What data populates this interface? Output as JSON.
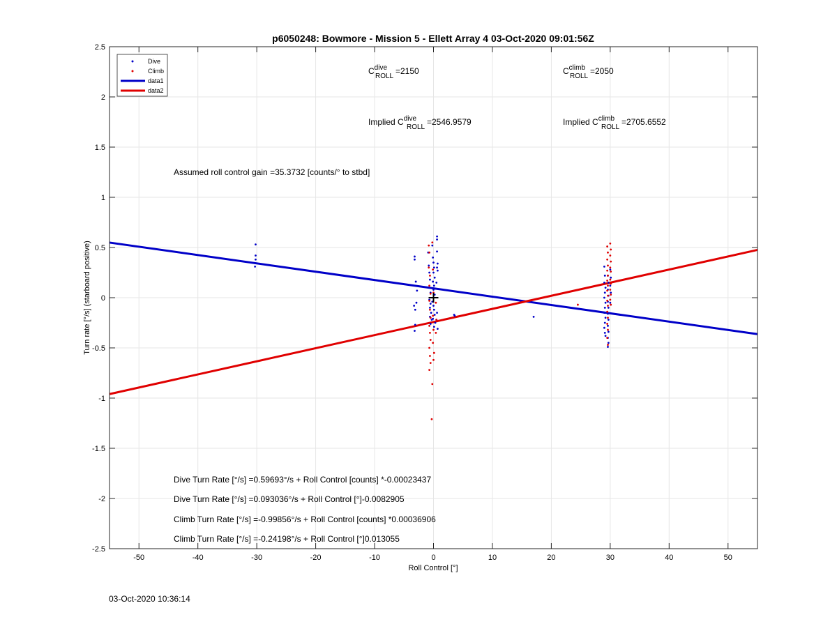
{
  "colors": {
    "dive": "#0000c8",
    "climb": "#e00000",
    "grid": "#e6e6e6",
    "axis": "#262626"
  },
  "chart_data": {
    "type": "scatter",
    "title": "p6050248: Bowmore - Mission 5 - Ellett Array 4 03-Oct-2020 09:01:56Z",
    "xlabel": "Roll Control [°]",
    "ylabel": "Turn rate [°/s] (starboard positive)",
    "xlim": [
      -55,
      55
    ],
    "ylim": [
      -2.5,
      2.5
    ],
    "xticks": [
      -50,
      -40,
      -30,
      -20,
      -10,
      0,
      10,
      20,
      30,
      40,
      50
    ],
    "yticks": [
      -2.5,
      -2,
      -1.5,
      -1,
      -0.5,
      0,
      0.5,
      1,
      1.5,
      2,
      2.5
    ],
    "xtick_labels": [
      "-50",
      "-40",
      "-30",
      "-20",
      "-10",
      "0",
      "10",
      "20",
      "30",
      "40",
      "50"
    ],
    "ytick_labels": [
      "-2.5",
      "-2",
      "-1.5",
      "-1",
      "-0.5",
      "0",
      "0.5",
      "1",
      "1.5",
      "2",
      "2.5"
    ],
    "grid": true,
    "legend_position": "top-left",
    "legend": [
      "Dive",
      "Climb",
      "data1",
      "data2"
    ],
    "series": [
      {
        "name": "Dive",
        "kind": "points",
        "points": [
          [
            -30.2,
            0.53
          ],
          [
            -30.2,
            0.42
          ],
          [
            -30.2,
            0.38
          ],
          [
            -30.3,
            0.31
          ],
          [
            -3.2,
            0.41
          ],
          [
            -3.2,
            0.38
          ],
          [
            -3.0,
            0.16
          ],
          [
            -2.8,
            0.07
          ],
          [
            -3.3,
            -0.08
          ],
          [
            -3.1,
            -0.12
          ],
          [
            -2.9,
            -0.05
          ],
          [
            -3.1,
            -0.27
          ],
          [
            -3.2,
            -0.33
          ],
          [
            -0.9,
            0.45
          ],
          [
            -0.8,
            0.32
          ],
          [
            -0.7,
            0.25
          ],
          [
            -0.6,
            0.18
          ],
          [
            -0.8,
            0.1
          ],
          [
            -0.5,
            0.05
          ],
          [
            -0.7,
            -0.02
          ],
          [
            -0.5,
            -0.06
          ],
          [
            -0.6,
            -0.1
          ],
          [
            -0.4,
            -0.15
          ],
          [
            -0.6,
            -0.19
          ],
          [
            -0.3,
            -0.22
          ],
          [
            -0.5,
            -0.26
          ],
          [
            -0.2,
            0.52
          ],
          [
            -0.1,
            0.4
          ],
          [
            0.0,
            0.35
          ],
          [
            0.1,
            0.3
          ],
          [
            0.0,
            0.25
          ],
          [
            0.2,
            0.2
          ],
          [
            -0.1,
            0.16
          ],
          [
            0.1,
            0.12
          ],
          [
            0.0,
            0.08
          ],
          [
            0.2,
            0.03
          ],
          [
            -0.2,
            -0.04
          ],
          [
            0.0,
            -0.08
          ],
          [
            0.1,
            -0.12
          ],
          [
            0.2,
            -0.17
          ],
          [
            -0.1,
            -0.21
          ],
          [
            0.3,
            -0.25
          ],
          [
            0.1,
            -0.29
          ],
          [
            0.6,
            0.61
          ],
          [
            0.6,
            0.58
          ],
          [
            0.6,
            0.46
          ],
          [
            0.7,
            0.34
          ],
          [
            0.6,
            0.3
          ],
          [
            0.7,
            0.27
          ],
          [
            0.5,
            0.15
          ],
          [
            0.6,
            -0.15
          ],
          [
            0.5,
            -0.22
          ],
          [
            0.7,
            -0.31
          ],
          [
            3.5,
            -0.17
          ],
          [
            3.6,
            -0.18
          ],
          [
            17.0,
            -0.19
          ],
          [
            29.0,
            0.31
          ],
          [
            29.1,
            0.22
          ],
          [
            29.0,
            0.15
          ],
          [
            29.2,
            0.1
          ],
          [
            29.1,
            0.05
          ],
          [
            29.0,
            0.0
          ],
          [
            29.2,
            -0.05
          ],
          [
            29.1,
            -0.1
          ],
          [
            29.0,
            -0.15
          ],
          [
            29.2,
            -0.2
          ],
          [
            29.1,
            -0.25
          ],
          [
            29.0,
            -0.3
          ],
          [
            29.1,
            -0.35
          ],
          [
            29.2,
            -0.38
          ],
          [
            29.6,
            0.22
          ],
          [
            29.7,
            0.15
          ],
          [
            29.6,
            0.08
          ],
          [
            29.7,
            0.02
          ],
          [
            29.6,
            -0.04
          ],
          [
            29.7,
            -0.1
          ],
          [
            29.6,
            -0.16
          ],
          [
            29.7,
            -0.22
          ],
          [
            29.6,
            -0.28
          ],
          [
            29.7,
            -0.34
          ],
          [
            29.6,
            -0.4
          ],
          [
            29.7,
            -0.45
          ],
          [
            29.6,
            -0.49
          ],
          [
            30.0,
            0.28
          ],
          [
            30.1,
            0.2
          ],
          [
            30.0,
            0.12
          ],
          [
            30.1,
            0.05
          ],
          [
            30.0,
            -0.05
          ]
        ]
      },
      {
        "name": "Climb",
        "kind": "points",
        "points": [
          [
            -0.8,
            0.52
          ],
          [
            -0.7,
            0.45
          ],
          [
            -0.8,
            0.3
          ],
          [
            -0.6,
            0.22
          ],
          [
            -0.7,
            0.12
          ],
          [
            -0.5,
            0.04
          ],
          [
            -0.7,
            -0.03
          ],
          [
            -0.6,
            -0.12
          ],
          [
            -0.5,
            -0.2
          ],
          [
            -0.7,
            -0.28
          ],
          [
            -0.6,
            -0.35
          ],
          [
            -0.5,
            -0.42
          ],
          [
            -0.7,
            -0.5
          ],
          [
            -0.6,
            -0.58
          ],
          [
            -0.5,
            -0.65
          ],
          [
            -0.7,
            -0.72
          ],
          [
            -0.2,
            0.55
          ],
          [
            -0.1,
            0.28
          ],
          [
            0.0,
            0.05
          ],
          [
            -0.1,
            -0.18
          ],
          [
            0.0,
            -0.32
          ],
          [
            -0.1,
            -0.45
          ],
          [
            0.1,
            -0.55
          ],
          [
            0.0,
            -0.62
          ],
          [
            -0.2,
            -0.86
          ],
          [
            -0.3,
            -1.21
          ],
          [
            0.4,
            -0.05
          ],
          [
            0.5,
            -0.22
          ],
          [
            0.4,
            -0.35
          ],
          [
            24.5,
            -0.07
          ],
          [
            29.5,
            0.51
          ],
          [
            29.6,
            0.45
          ],
          [
            29.5,
            0.38
          ],
          [
            29.6,
            0.32
          ],
          [
            29.5,
            0.27
          ],
          [
            29.6,
            0.22
          ],
          [
            29.5,
            0.17
          ],
          [
            29.6,
            0.12
          ],
          [
            29.5,
            0.07
          ],
          [
            29.6,
            0.02
          ],
          [
            29.5,
            -0.03
          ],
          [
            29.6,
            -0.08
          ],
          [
            29.5,
            -0.14
          ],
          [
            29.6,
            -0.2
          ],
          [
            29.5,
            -0.26
          ],
          [
            29.6,
            -0.32
          ],
          [
            29.5,
            -0.4
          ],
          [
            29.6,
            -0.47
          ],
          [
            30.0,
            0.54
          ],
          [
            30.1,
            0.48
          ],
          [
            30.0,
            0.42
          ],
          [
            30.1,
            0.36
          ],
          [
            30.0,
            0.3
          ],
          [
            30.1,
            0.26
          ],
          [
            30.0,
            0.18
          ],
          [
            30.1,
            0.14
          ],
          [
            30.0,
            0.08
          ],
          [
            30.1,
            0.03
          ],
          [
            30.0,
            -0.02
          ],
          [
            30.1,
            -0.07
          ]
        ]
      },
      {
        "name": "data1",
        "kind": "line",
        "intercept": 0.093036,
        "slope": -0.0082905
      },
      {
        "name": "data2",
        "kind": "line",
        "intercept": -0.24198,
        "slope": 0.013055
      }
    ],
    "marker": {
      "kind": "plus",
      "x": 0,
      "y": 0
    },
    "annotations": {
      "c_dive": {
        "base": "C",
        "sup": "dive",
        "sub": "ROLL",
        "value": "=2150"
      },
      "c_climb": {
        "base": "C",
        "sup": "climb",
        "sub": "ROLL",
        "value": "=2050"
      },
      "implied_dive": {
        "prefix": "Implied C",
        "sup": "dive",
        "sub": "ROLL",
        "value": "=2546.9579"
      },
      "implied_climb": {
        "prefix": "Implied C",
        "sup": "climb",
        "sub": "ROLL",
        "value": "=2705.6552"
      },
      "gain": "Assumed roll control gain =35.3732 [counts/° to stbd]",
      "eq1": "Dive Turn Rate [°/s] =0.59693°/s + Roll Control [counts] *-0.00023437",
      "eq2": "Dive Turn Rate [°/s] =0.093036°/s + Roll Control [°]-0.0082905",
      "eq3": "Climb Turn Rate [°/s] =-0.99856°/s + Roll Control [counts] *0.00036906",
      "eq4": "Climb Turn Rate [°/s] =-0.24198°/s + Roll Control [°]0.013055"
    }
  },
  "footer": {
    "timestamp": "03-Oct-2020 10:36:14"
  }
}
